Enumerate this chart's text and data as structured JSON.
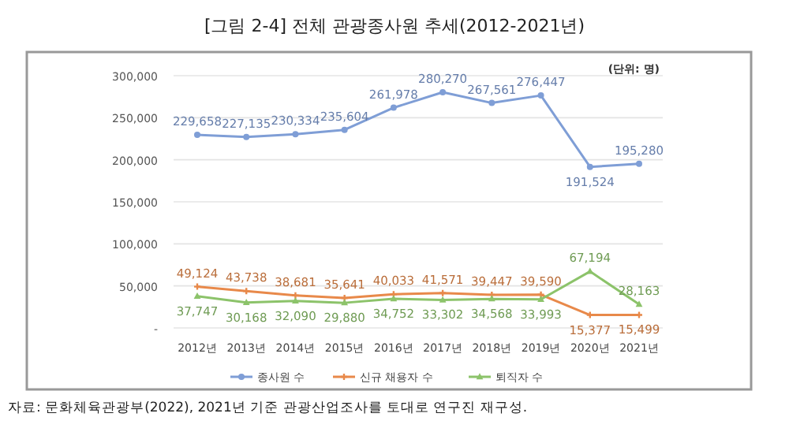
{
  "chart_data": {
    "type": "line",
    "title": "[그림 2-4] 전체 관광종사원 추세(2012-2021년)",
    "categories": [
      "2012년",
      "2013년",
      "2014년",
      "2015년",
      "2016년",
      "2017년",
      "2018년",
      "2019년",
      "2020년",
      "2021년"
    ],
    "series": [
      {
        "name": "종사원 수",
        "color": "#7f9ed6",
        "marker": "circle",
        "values": [
          229658,
          227135,
          230334,
          235604,
          261978,
          280270,
          267561,
          276447,
          191524,
          195280
        ],
        "value_labels": [
          "229,658",
          "227,135",
          "230,334",
          "235,604",
          "261,978",
          "280,270",
          "267,561",
          "276,447",
          "191,524",
          "195,280"
        ]
      },
      {
        "name": "신규 채용자 수",
        "color": "#e8894a",
        "marker": "cross",
        "values": [
          49124,
          43738,
          38681,
          35641,
          40033,
          41571,
          39447,
          39590,
          15377,
          15499
        ],
        "value_labels": [
          "49,124",
          "43,738",
          "38,681",
          "35,641",
          "40,033",
          "41,571",
          "39,447",
          "39,590",
          "15,377",
          "15,499"
        ]
      },
      {
        "name": "퇴직자 수",
        "color": "#8cc36a",
        "marker": "triangle",
        "values": [
          37747,
          30168,
          32090,
          29880,
          34752,
          33302,
          34568,
          33993,
          67194,
          28163
        ],
        "value_labels": [
          "37,747",
          "30,168",
          "32,090",
          "29,880",
          "34,752",
          "33,302",
          "34,568",
          "33,993",
          "67,194",
          "28,163"
        ]
      }
    ],
    "ylim": [
      0,
      300000
    ],
    "yticks": [
      {
        "value": 0,
        "label": "-"
      },
      {
        "value": 50000,
        "label": "50,000"
      },
      {
        "value": 100000,
        "label": "100,000"
      },
      {
        "value": 150000,
        "label": "150,000"
      },
      {
        "value": 200000,
        "label": "200,000"
      },
      {
        "value": 250000,
        "label": "250,000"
      },
      {
        "value": 300000,
        "label": "300,000"
      }
    ],
    "grid": "y",
    "legend": "bottom",
    "annotations": [
      "(단위: 명)",
      "자료: 문화체육관광부(2022), 2021년 기준 관광산업조사를 토대로 연구진 재구성."
    ]
  }
}
